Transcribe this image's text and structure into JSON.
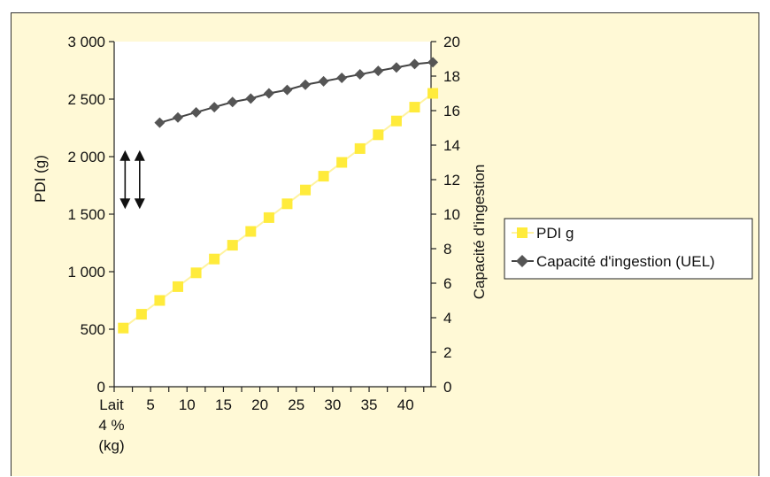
{
  "chart_data": {
    "type": "line",
    "left_axis": {
      "label": "PDI (g)",
      "ylim": [
        0,
        3000
      ],
      "ticks": [
        0,
        500,
        1000,
        1500,
        2000,
        2500,
        3000
      ],
      "tick_labels": [
        "0",
        "500",
        "1 000",
        "1 500",
        "2 000",
        "2 500",
        "3 000"
      ]
    },
    "right_axis": {
      "label": "Capacité d'ingestion",
      "ylim": [
        0,
        20
      ],
      "ticks": [
        0,
        2,
        4,
        6,
        8,
        10,
        12,
        14,
        16,
        18,
        20
      ],
      "tick_labels": [
        "0",
        "2",
        "4",
        "6",
        "8",
        "10",
        "12",
        "14",
        "16",
        "18",
        "20"
      ]
    },
    "x_axis": {
      "label_lines": [
        "Lait",
        "4 %",
        "(kg)"
      ],
      "xlim": [
        0,
        43.5
      ],
      "ticks": [
        5,
        10,
        15,
        20,
        25,
        30,
        35,
        40
      ],
      "tick_labels": [
        "5",
        "10",
        "15",
        "20",
        "25",
        "30",
        "35",
        "40"
      ],
      "minor_step": 2.5
    },
    "series": [
      {
        "name": "PDI g",
        "axis": "left",
        "color": "#ffeb3b",
        "line_color": "#fff3a0",
        "marker": "square",
        "x": [
          1.25,
          3.75,
          6.25,
          8.75,
          11.25,
          13.75,
          16.25,
          18.75,
          21.25,
          23.75,
          26.25,
          28.75,
          31.25,
          33.75,
          36.25,
          38.75,
          41.25,
          43.75
        ],
        "values": [
          510,
          630,
          750,
          870,
          990,
          1110,
          1230,
          1350,
          1470,
          1590,
          1710,
          1830,
          1950,
          2070,
          2190,
          2310,
          2430,
          2550
        ]
      },
      {
        "name": "Capacité d'ingestion (UEL)",
        "axis": "right",
        "color": "#555555",
        "line_color": "#444444",
        "marker": "diamond",
        "x": [
          6.25,
          8.75,
          11.25,
          13.75,
          16.25,
          18.75,
          21.25,
          23.75,
          26.25,
          28.75,
          31.25,
          33.75,
          36.25,
          38.75,
          41.25,
          43.75
        ],
        "values": [
          15.3,
          15.6,
          15.9,
          16.2,
          16.5,
          16.7,
          17.0,
          17.2,
          17.5,
          17.7,
          17.9,
          18.1,
          18.3,
          18.5,
          18.7,
          18.8
        ]
      }
    ],
    "annotations": [
      {
        "type": "double-arrow",
        "x": 1.5,
        "y_from": 2040,
        "y_to": 1560,
        "axis": "left"
      },
      {
        "type": "double-arrow",
        "x": 3.5,
        "y_from": 2040,
        "y_to": 1560,
        "axis": "left"
      }
    ],
    "legend": {
      "placement": "right",
      "entries": [
        "PDI g",
        "Capacité d'ingestion (UEL)"
      ]
    },
    "grid": false,
    "background": "#fff9d6",
    "plot_background": "#ffffff"
  }
}
